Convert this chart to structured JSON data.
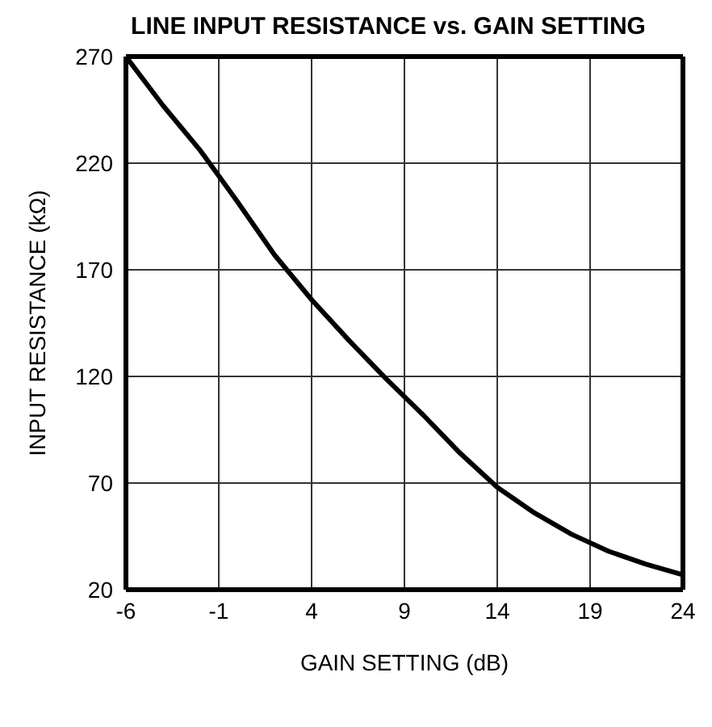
{
  "chart_data": {
    "type": "line",
    "title": "LINE INPUT RESISTANCE vs. GAIN SETTING",
    "xlabel": "GAIN SETTING (dB)",
    "ylabel": "INPUT RESISTANCE (kΩ)",
    "x": [
      -6,
      -4,
      -2,
      -1,
      0,
      2,
      4,
      6,
      8,
      10,
      12,
      14,
      16,
      18,
      20,
      22,
      24
    ],
    "series": [
      {
        "color": "#000000",
        "values": [
          270,
          247,
          226,
          214,
          202,
          177,
          156,
          137,
          119,
          102,
          84,
          68,
          56,
          46,
          38,
          32,
          27
        ]
      }
    ],
    "xlim": [
      -6,
      24
    ],
    "xticks": [
      -6,
      -1,
      4,
      9,
      14,
      19,
      24
    ],
    "ylim": [
      20,
      270
    ],
    "yticks": [
      20,
      70,
      120,
      170,
      220,
      270
    ],
    "grid": true,
    "marker": "none",
    "line_style": "solid"
  }
}
